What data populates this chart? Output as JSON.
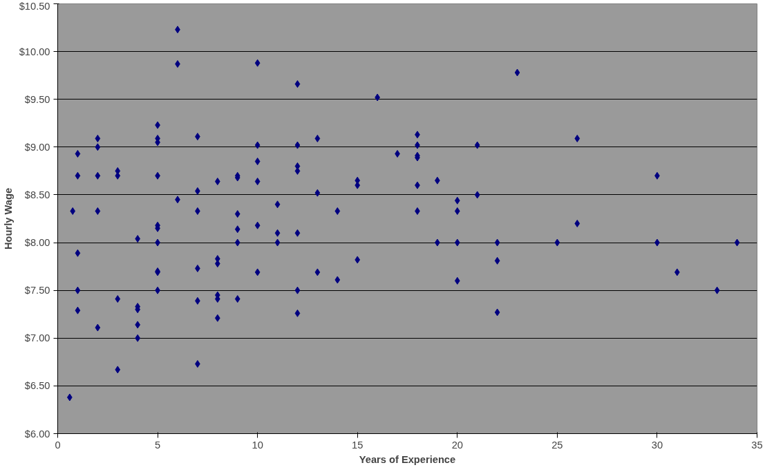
{
  "chart_data": {
    "type": "scatter",
    "xlabel": "Years of Experience",
    "ylabel": "Hourly Wage",
    "x": [
      0.6,
      0.75,
      1,
      1,
      1,
      1,
      1,
      2,
      2,
      2,
      2,
      2,
      3,
      3,
      3,
      3,
      4,
      4,
      4,
      4,
      4,
      5,
      5,
      5,
      5,
      5,
      5,
      5,
      5,
      5,
      5,
      6,
      6,
      6,
      7,
      7,
      7,
      7,
      7,
      7,
      8,
      8,
      8,
      8,
      8,
      8,
      9,
      9,
      9,
      9,
      9,
      9,
      10,
      10,
      10,
      10,
      10,
      10,
      11,
      11,
      11,
      12,
      12,
      12,
      12,
      12,
      12,
      12,
      13,
      13,
      13,
      14,
      14,
      15,
      15,
      15,
      16,
      17,
      18,
      18,
      18,
      18,
      18,
      18,
      19,
      19,
      20,
      20,
      20,
      20,
      21,
      21,
      22,
      22,
      22,
      23,
      25,
      26,
      26,
      30,
      30,
      31,
      33,
      34
    ],
    "series": [
      {
        "color": "#000080",
        "values": [
          6.38,
          8.33,
          8.93,
          8.7,
          7.89,
          7.5,
          7.29,
          9.09,
          9.0,
          8.7,
          8.33,
          7.11,
          8.75,
          8.7,
          7.41,
          6.67,
          8.04,
          7.33,
          7.3,
          7.14,
          7.0,
          9.23,
          9.09,
          9.05,
          8.7,
          8.18,
          8.15,
          8.0,
          7.7,
          7.69,
          7.5,
          10.23,
          9.87,
          8.45,
          9.11,
          8.54,
          8.33,
          7.73,
          7.39,
          6.73,
          8.64,
          7.83,
          7.78,
          7.45,
          7.41,
          7.21,
          8.7,
          8.68,
          8.3,
          8.14,
          8.0,
          7.41,
          9.88,
          9.02,
          8.85,
          8.64,
          8.18,
          7.69,
          8.4,
          8.1,
          8.0,
          9.66,
          9.02,
          8.8,
          8.75,
          8.1,
          7.5,
          7.26,
          9.09,
          8.52,
          7.69,
          8.33,
          7.61,
          8.65,
          8.6,
          7.82,
          9.52,
          8.93,
          9.13,
          9.02,
          8.91,
          8.89,
          8.6,
          8.33,
          8.65,
          8.0,
          8.44,
          8.33,
          8.0,
          7.6,
          9.02,
          8.5,
          8.0,
          7.81,
          7.27,
          9.78,
          8.0,
          9.09,
          8.2,
          8.7,
          8.0,
          7.69,
          7.5,
          8.0
        ]
      }
    ],
    "xlim": [
      0,
      35
    ],
    "xticks": [
      0,
      5,
      10,
      15,
      20,
      25,
      30,
      35
    ],
    "ylim": [
      6,
      10.5
    ],
    "yticks": [
      {
        "value": 6,
        "label": "$6.00"
      },
      {
        "value": 6.5,
        "label": "$6.50"
      },
      {
        "value": 7,
        "label": "$7.00"
      },
      {
        "value": 7.5,
        "label": "$7.50"
      },
      {
        "value": 8,
        "label": "$8.00"
      },
      {
        "value": 8.5,
        "label": "$8.50"
      },
      {
        "value": 9,
        "label": "$9.00"
      },
      {
        "value": 9.5,
        "label": "$9.50"
      },
      {
        "value": 10,
        "label": "$10.00"
      },
      {
        "value": 10.5,
        "label": "$10.50"
      }
    ],
    "grid": "y",
    "marker": "diamond"
  }
}
